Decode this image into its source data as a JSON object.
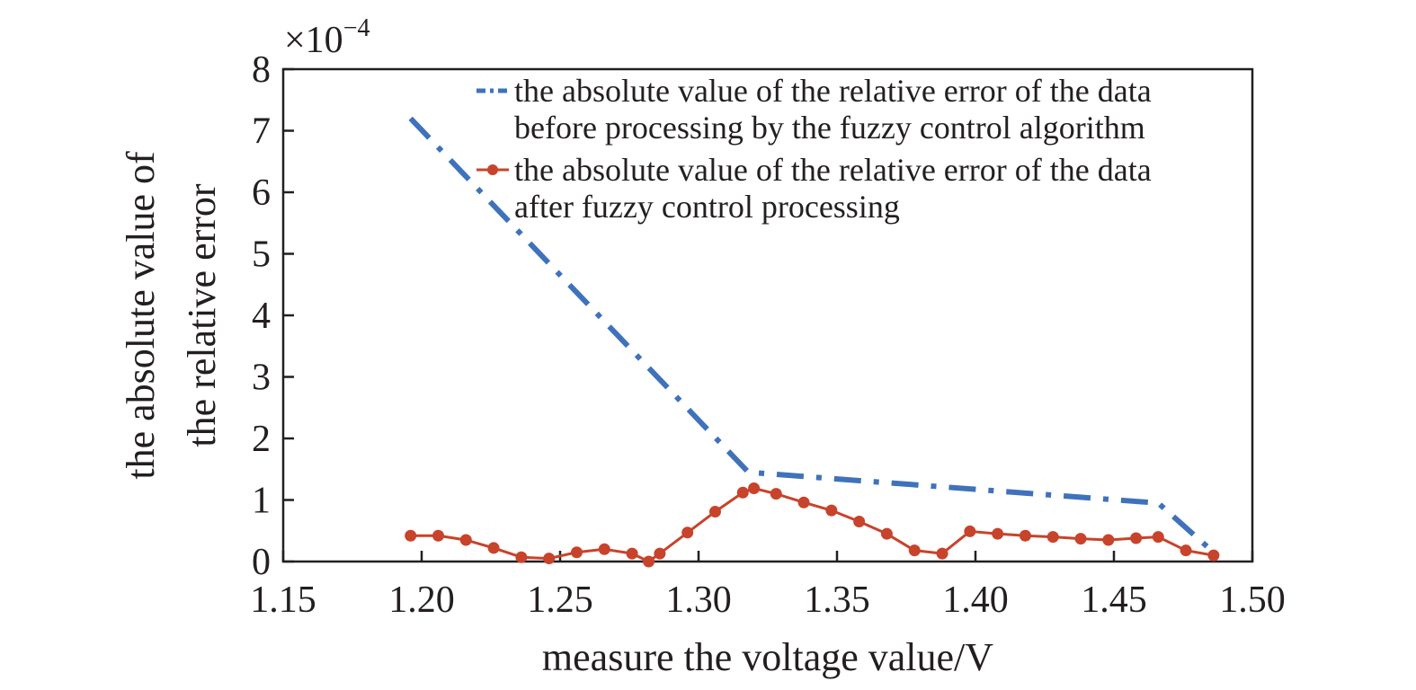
{
  "chart_data": {
    "type": "line",
    "xlabel": "measure the voltage value/V",
    "ylabel": [
      "the absolute value of",
      "the relative error"
    ],
    "y_multiplier": {
      "base": "×10",
      "exponent": "−4"
    },
    "xlim": [
      1.15,
      1.5
    ],
    "ylim": [
      0,
      8
    ],
    "xticks": [
      "1.15",
      "1.20",
      "1.25",
      "1.30",
      "1.35",
      "1.40",
      "1.45",
      "1.50"
    ],
    "yticks": [
      "0",
      "1",
      "2",
      "3",
      "4",
      "5",
      "6",
      "7",
      "8"
    ],
    "grid": false,
    "legend_position": "top-right",
    "series": [
      {
        "name": "the absolute value of the relative error of the data before processing by the fuzzy control algorithm",
        "name_lines": [
          "the absolute value of the relative error of the data",
          "before processing by the fuzzy control algorithm"
        ],
        "style": "dash-dot",
        "color": "#3f72bb",
        "x": [
          1.196,
          1.318,
          1.466,
          1.486
        ],
        "y": [
          7.2,
          1.45,
          0.95,
          0.15
        ]
      },
      {
        "name": "the absolute value of the relative error of the data after fuzzy control processing",
        "name_lines": [
          "the absolute value of the relative error of the data",
          "after fuzzy control processing"
        ],
        "style": "solid-marker",
        "color": "#c8432b",
        "x": [
          1.196,
          1.206,
          1.216,
          1.226,
          1.236,
          1.246,
          1.256,
          1.266,
          1.276,
          1.282,
          1.286,
          1.296,
          1.306,
          1.316,
          1.32,
          1.328,
          1.338,
          1.348,
          1.358,
          1.368,
          1.378,
          1.388,
          1.398,
          1.408,
          1.418,
          1.428,
          1.438,
          1.448,
          1.458,
          1.466,
          1.476,
          1.486
        ],
        "y": [
          0.42,
          0.42,
          0.35,
          0.22,
          0.07,
          0.05,
          0.15,
          0.2,
          0.13,
          0.0,
          0.13,
          0.47,
          0.81,
          1.12,
          1.19,
          1.1,
          0.96,
          0.83,
          0.65,
          0.45,
          0.18,
          0.13,
          0.49,
          0.45,
          0.42,
          0.4,
          0.37,
          0.35,
          0.38,
          0.4,
          0.18,
          0.1
        ]
      }
    ]
  }
}
